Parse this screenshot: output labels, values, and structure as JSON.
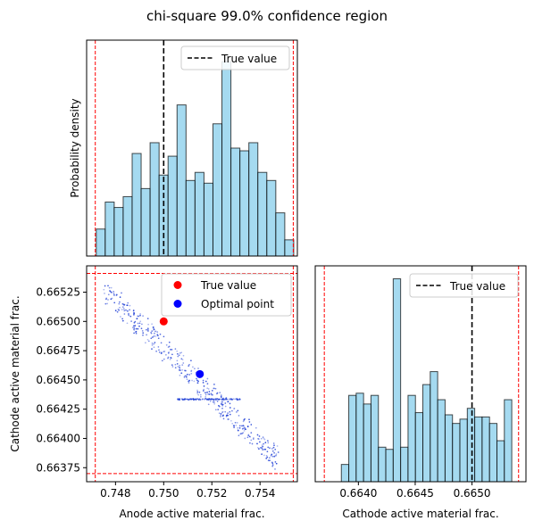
{
  "title": "chi-square 99.0% confidence region",
  "colors": {
    "hist_fill": "#87ceeb",
    "hist_edge": "#000000",
    "scatter": "#1f3fd6",
    "true_value": "#ff0000",
    "optimal": "#0000ff",
    "bounds": "#ff0000"
  },
  "chart_data": [
    {
      "type": "bar",
      "panel": "anode-histogram",
      "ylabel": "Probability density",
      "xlim": [
        0.7468,
        0.75555
      ],
      "bin_range": [
        0.7472,
        0.7554
      ],
      "bin_heights": [
        0.1,
        0.2,
        0.18,
        0.22,
        0.38,
        0.25,
        0.42,
        0.3,
        0.37,
        0.56,
        0.28,
        0.31,
        0.27,
        0.49,
        0.72,
        0.4,
        0.39,
        0.42,
        0.31,
        0.28,
        0.16,
        0.06
      ],
      "ylim": [
        0,
        0.8
      ],
      "true_value": 0.75,
      "bounds": [
        0.74716,
        0.75538
      ],
      "legend": [
        "True value"
      ]
    },
    {
      "type": "scatter",
      "panel": "joint-scatter",
      "xlabel": "Anode active material frac.",
      "ylabel": "Cathode active material frac.",
      "xlim": [
        0.7468,
        0.75555
      ],
      "ylim": [
        0.66363,
        0.665475
      ],
      "xticks": [
        "0.748",
        "0.750",
        "0.752",
        "0.754"
      ],
      "yticks": [
        "0.66375",
        "0.66400",
        "0.66425",
        "0.66450",
        "0.66475",
        "0.66500",
        "0.66525"
      ],
      "true_value": {
        "x": 0.75,
        "y": 0.665
      },
      "optimal_point": {
        "x": 0.7515,
        "y": 0.66455
      },
      "bounds_x": [
        0.74716,
        0.75538
      ],
      "bounds_y": [
        0.6637,
        0.66541
      ],
      "legend": [
        "True value",
        "Optimal point"
      ]
    },
    {
      "type": "bar",
      "panel": "cathode-histogram",
      "xlabel": "Cathode active material frac.",
      "xlim": [
        0.66362,
        0.665475
      ],
      "xticks": [
        "0.6640",
        "0.6645",
        "0.6650"
      ],
      "bin_range": [
        0.66385,
        0.66535
      ],
      "bin_heights": [
        0.08,
        0.4,
        0.41,
        0.36,
        0.4,
        0.16,
        0.15,
        0.94,
        0.16,
        0.4,
        0.32,
        0.45,
        0.51,
        0.38,
        0.31,
        0.27,
        0.29,
        0.34,
        0.3,
        0.3,
        0.27,
        0.19,
        0.38
      ],
      "ylim": [
        0,
        1.0
      ],
      "true_value": 0.665,
      "bounds": [
        0.6637,
        0.66541
      ],
      "legend": [
        "True value"
      ]
    }
  ]
}
